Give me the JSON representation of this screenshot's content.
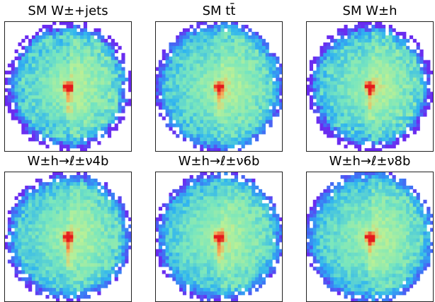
{
  "colors": {
    "colormap": "rainbow",
    "low": "#6a2cf0",
    "mid_low": "#2fb4f0",
    "mid": "#8ff2a8",
    "mid_high": "#f4a85a",
    "high": "#e31a1c"
  },
  "chart_data": [
    {
      "type": "heatmap",
      "title": "SM W±+jets",
      "scatter_level": 0.9,
      "density": 0.9,
      "disk_radius": 0.93
    },
    {
      "type": "heatmap",
      "title": "SM tt̄",
      "scatter_level": 0.55,
      "density": 1.0,
      "disk_radius": 0.95
    },
    {
      "type": "heatmap",
      "title": "SM W±h",
      "scatter_level": 0.85,
      "density": 0.92,
      "disk_radius": 0.92
    },
    {
      "type": "heatmap",
      "title": "W±h→ℓ±ν4b",
      "scatter_level": 0.6,
      "density": 0.98,
      "disk_radius": 0.93
    },
    {
      "type": "heatmap",
      "title": "W±h→ℓ±ν6b",
      "scatter_level": 0.55,
      "density": 1.0,
      "disk_radius": 0.94
    },
    {
      "type": "heatmap",
      "title": "W±h→ℓ±ν8b",
      "scatter_level": 0.5,
      "density": 1.0,
      "disk_radius": 0.95
    }
  ]
}
